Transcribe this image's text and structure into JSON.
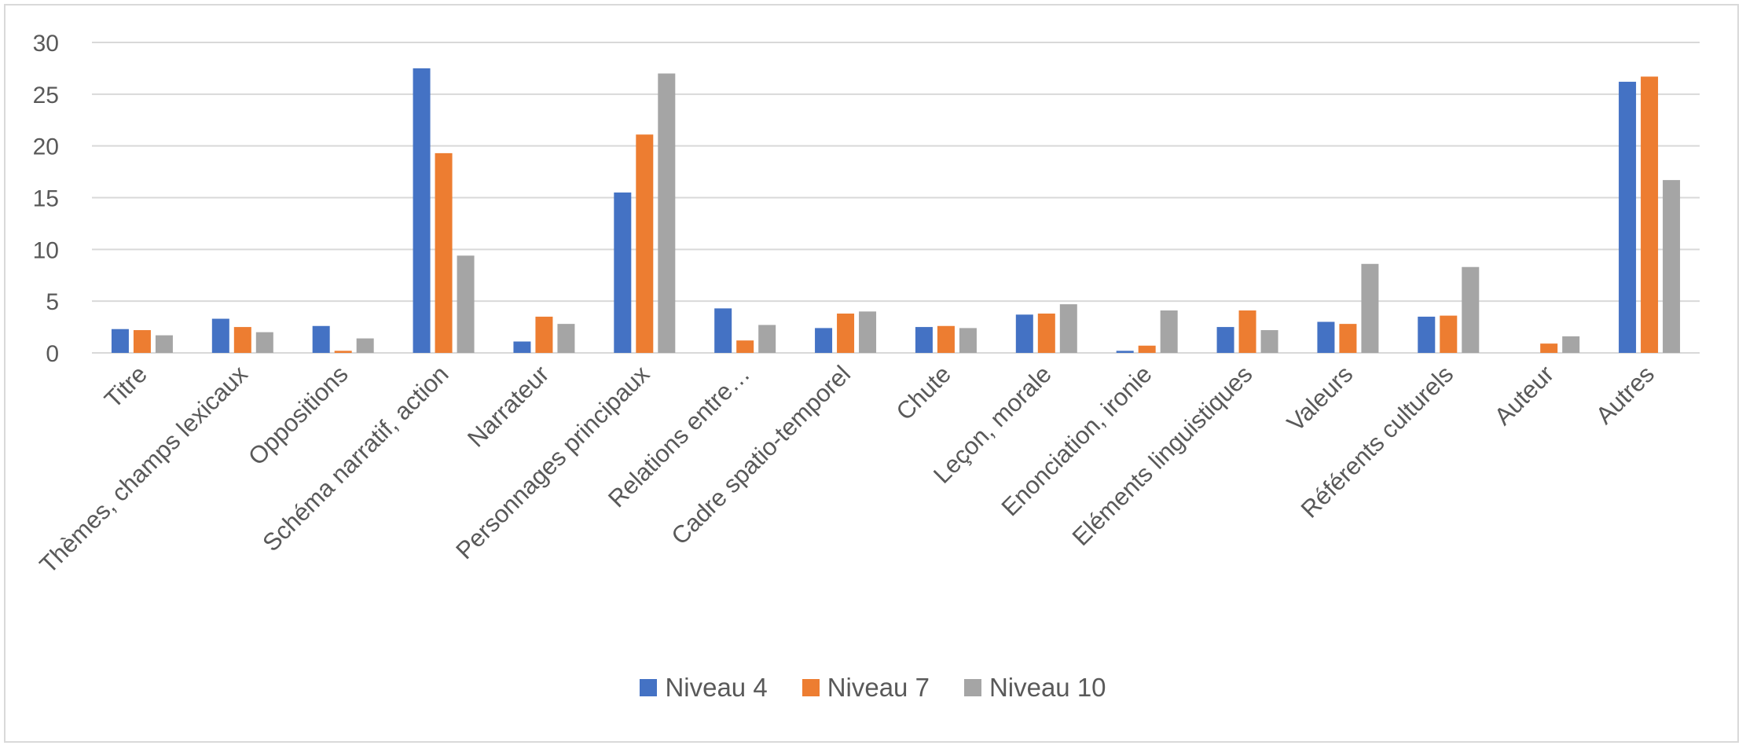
{
  "chart_data": {
    "type": "bar",
    "title": "",
    "xlabel": "",
    "ylabel": "",
    "ylim": [
      0,
      30
    ],
    "yticks": [
      0,
      5,
      10,
      15,
      20,
      25,
      30
    ],
    "grid": true,
    "legend_position": "bottom",
    "categories": [
      "Titre",
      "Thèmes, champs lexicaux",
      "Oppositions",
      "Schéma narratif, action",
      "Narrateur",
      "Personnages principaux",
      "Relations entre…",
      "Cadre spatio-temporel",
      "Chute",
      "Leçon, morale",
      "Enonciation, ironie",
      "Eléments linguistiques",
      "Valeurs",
      "Référents culturels",
      "Auteur",
      "Autres"
    ],
    "series": [
      {
        "name": "Niveau 4",
        "color": "#4472c4",
        "values": [
          2.3,
          3.3,
          2.6,
          27.5,
          1.1,
          15.5,
          4.3,
          2.4,
          2.5,
          3.7,
          0.2,
          2.5,
          3.0,
          3.5,
          0,
          26.2
        ]
      },
      {
        "name": "Niveau 7",
        "color": "#ed7d31",
        "values": [
          2.2,
          2.5,
          0.2,
          19.3,
          3.5,
          21.1,
          1.2,
          3.8,
          2.6,
          3.8,
          0.7,
          4.1,
          2.8,
          3.6,
          0.9,
          26.7
        ]
      },
      {
        "name": "Niveau 10",
        "color": "#a5a5a5",
        "values": [
          1.7,
          2.0,
          1.4,
          9.4,
          2.8,
          27.0,
          2.7,
          4.0,
          2.4,
          4.7,
          4.1,
          2.2,
          8.6,
          8.3,
          1.6,
          16.7
        ]
      }
    ]
  }
}
